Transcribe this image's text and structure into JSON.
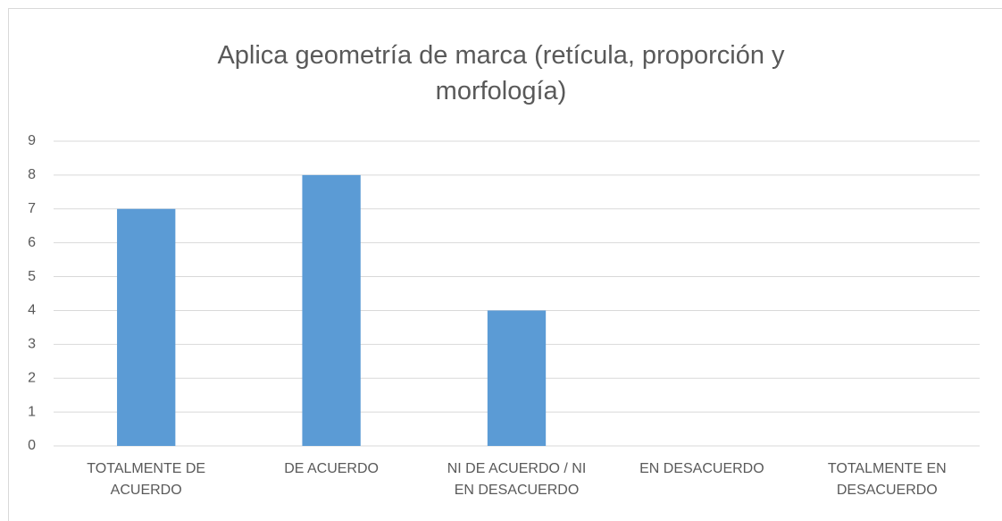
{
  "chart_data": {
    "type": "bar",
    "title": "Aplica geometría de marca (retícula, proporción y morfología)",
    "categories": [
      "TOTALMENTE DE ACUERDO",
      "DE ACUERDO",
      "NI DE ACUERDO / NI EN DESACUERDO",
      "EN DESACUERDO",
      "TOTALMENTE EN DESACUERDO"
    ],
    "values": [
      7,
      8,
      4,
      0,
      0
    ],
    "color": "#5b9bd5",
    "ylim": [
      0,
      9
    ],
    "yticks": [
      0,
      1,
      2,
      3,
      4,
      5,
      6,
      7,
      8,
      9
    ],
    "grid": true
  }
}
